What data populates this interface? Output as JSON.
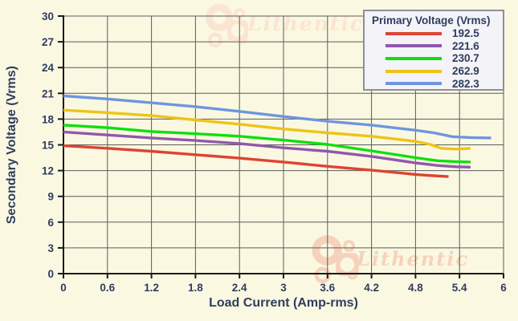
{
  "ui": {
    "colors": {
      "background": "#FBF8E2",
      "text_navy": "#2F3D5E",
      "gridline": "#5B5B5B",
      "axis_line": "#1A1A1A",
      "legend_background": "#F3F3F8",
      "legend_border": "#8E8E9A",
      "watermark_top": "#FAE5D2",
      "watermark_bottom": "#F6D2BC"
    },
    "watermark_top": {
      "text": "Lithentic",
      "icon": "gears-logo-icon"
    },
    "watermark_bottom": {
      "text": "Lithentic",
      "icon": "gears-logo-icon"
    }
  },
  "chart_data": {
    "type": "line",
    "title": "",
    "xlabel": "Load Current (Amp-rms)",
    "ylabel": "Secondary Voltage (Vrms)",
    "xlim": [
      0,
      6
    ],
    "ylim": [
      0,
      30
    ],
    "grid": true,
    "x_tick_labels": [
      "0",
      "0.6",
      "1.2",
      "1.8",
      "2.4",
      "3",
      "3.6",
      "4.2",
      "4.8",
      "5.4",
      "6"
    ],
    "y_ticks": [
      0,
      3,
      6,
      9,
      12,
      15,
      18,
      21,
      24,
      27,
      30
    ],
    "legend": {
      "title": "Primary Voltage (Vrms)",
      "position": "top-right"
    },
    "series": [
      {
        "name": "192.5",
        "color": "#DD4433",
        "x": [
          0,
          0.6,
          1.2,
          1.8,
          2.4,
          3,
          3.6,
          4.2,
          4.8,
          5.05,
          5.25
        ],
        "y": [
          14.9,
          14.6,
          14.25,
          13.85,
          13.45,
          13.0,
          12.5,
          12.05,
          11.55,
          11.4,
          11.3
        ]
      },
      {
        "name": "221.6",
        "color": "#9059AC",
        "x": [
          0,
          0.6,
          1.2,
          1.8,
          2.4,
          3,
          3.6,
          4.2,
          4.8,
          5.1,
          5.35,
          5.55
        ],
        "y": [
          16.5,
          16.15,
          15.8,
          15.5,
          15.15,
          14.65,
          14.25,
          13.65,
          12.9,
          12.6,
          12.45,
          12.4
        ]
      },
      {
        "name": "230.7",
        "color": "#10DE10",
        "x": [
          0,
          0.6,
          1.2,
          1.8,
          2.4,
          3,
          3.6,
          4.2,
          4.8,
          5.1,
          5.35,
          5.55
        ],
        "y": [
          17.3,
          17.0,
          16.55,
          16.3,
          16.0,
          15.55,
          15.05,
          14.3,
          13.5,
          13.15,
          13.05,
          13.0
        ]
      },
      {
        "name": "262.9",
        "color": "#EDC417",
        "x": [
          0,
          0.6,
          1.2,
          1.8,
          2.4,
          3,
          3.6,
          4.2,
          4.8,
          5.0,
          5.15,
          5.35,
          5.55
        ],
        "y": [
          19.05,
          18.75,
          18.4,
          17.9,
          17.4,
          16.85,
          16.4,
          16.0,
          15.4,
          15.05,
          14.6,
          14.5,
          14.6
        ]
      },
      {
        "name": "282.3",
        "color": "#6E96DE",
        "x": [
          0,
          0.6,
          1.2,
          1.8,
          2.4,
          3,
          3.6,
          4.2,
          4.8,
          5.05,
          5.3,
          5.55,
          5.83
        ],
        "y": [
          20.7,
          20.35,
          19.9,
          19.45,
          18.9,
          18.3,
          17.75,
          17.3,
          16.7,
          16.4,
          15.95,
          15.85,
          15.8
        ]
      }
    ]
  }
}
